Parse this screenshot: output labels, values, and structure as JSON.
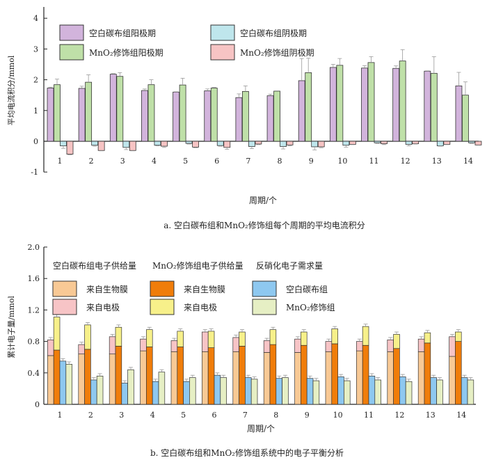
{
  "chart_data": [
    {
      "type": "bar",
      "caption": "a. 空白碳布组和MnO₂修饰组每个周期的平均电流积分",
      "xlabel": "周期/个",
      "ylabel": "平均电流积分/mmol",
      "ylim": [
        -1,
        4.5
      ],
      "yticks": [
        "-1",
        "0",
        "1",
        "2",
        "3",
        "4"
      ],
      "categories": [
        "1",
        "2",
        "3",
        "4",
        "5",
        "6",
        "7",
        "8",
        "9",
        "10",
        "11",
        "12",
        "13",
        "14"
      ],
      "legend_placement": "top",
      "series": [
        {
          "name": "空白碳布组阳极期",
          "color": "#d2b4dc",
          "values": [
            1.73,
            1.72,
            2.18,
            1.65,
            1.6,
            1.64,
            1.42,
            1.48,
            1.97,
            2.4,
            2.38,
            2.37,
            2.28,
            1.8
          ],
          "err": [
            0.03,
            0.07,
            0.02,
            0.05,
            0.01,
            0.06,
            0.12,
            0.05,
            0.72,
            0.1,
            0.08,
            0.08,
            0.01,
            0.44
          ]
        },
        {
          "name": "MnO₂修饰组阳极期",
          "color": "#bfe0a8",
          "values": [
            1.84,
            1.92,
            2.11,
            1.84,
            1.83,
            1.73,
            1.62,
            1.63,
            2.23,
            2.47,
            2.56,
            2.61,
            2.21,
            1.5
          ],
          "err": [
            0.18,
            0.24,
            0.12,
            0.16,
            0.22,
            0.02,
            0.18,
            0.01,
            0.47,
            0.22,
            0.19,
            0.37,
            0.54,
            0.43
          ]
        },
        {
          "name": "空白碳布组阴极期",
          "color": "#bfe6ec",
          "values": [
            -0.15,
            -0.13,
            -0.2,
            -0.13,
            -0.07,
            -0.14,
            -0.17,
            -0.17,
            -0.18,
            -0.13,
            -0.05,
            -0.1,
            -0.15,
            -0.05
          ],
          "err": [
            0.08,
            0.03,
            0.07,
            0.02,
            0.02,
            0.02,
            0.07,
            0.08,
            0.1,
            0.06,
            0.02,
            0.05,
            0.01,
            0.02
          ]
        },
        {
          "name": "MnO₂修饰组阴极期",
          "color": "#f7c4c4",
          "values": [
            -0.42,
            -0.3,
            -0.3,
            -0.16,
            -0.19,
            -0.2,
            -0.09,
            -0.12,
            -0.18,
            -0.1,
            -0.08,
            -0.08,
            -0.1,
            -0.12
          ],
          "err": [
            0.02,
            0.01,
            0.01,
            0.04,
            0.02,
            0.06,
            0.02,
            0.03,
            0.03,
            0.01,
            0.03,
            0.01,
            0.01,
            0.01
          ]
        }
      ]
    },
    {
      "type": "bar",
      "stacked": true,
      "caption": "b. 空白碳布组和MnO₂修饰组系统中的电子平衡分析",
      "xlabel": "周期/个",
      "ylabel": "累计电子量/mmol",
      "ylim": [
        0,
        2.0
      ],
      "yticks": [
        "0",
        "0.4",
        "0.8",
        "1.2",
        "1.6",
        "2.0"
      ],
      "categories": [
        "1",
        "2",
        "3",
        "4",
        "5",
        "6",
        "7",
        "8",
        "9",
        "10",
        "11",
        "12",
        "13",
        "14"
      ],
      "legend_groups": [
        "空白碳布组电子供给量",
        "MnO₂修饰组电子供给量",
        "反硝化电子需求量"
      ],
      "legend_placement": "top",
      "series": [
        {
          "name": "来自生物膜",
          "group": "空白碳布组电子供给量",
          "stack": "blank",
          "color": "#f8c995",
          "values": [
            0.62,
            0.64,
            0.64,
            0.68,
            0.67,
            0.67,
            0.67,
            0.66,
            0.66,
            0.67,
            0.68,
            0.67,
            0.67,
            0.61
          ]
        },
        {
          "name": "来自电极",
          "group": "空白碳布组电子供给量",
          "stack": "blank",
          "color": "#f7c4c6",
          "values": [
            0.2,
            0.12,
            0.22,
            0.15,
            0.14,
            0.25,
            0.18,
            0.15,
            0.17,
            0.13,
            0.12,
            0.15,
            0.16,
            0.25
          ]
        },
        {
          "name": "来自生物膜",
          "group": "MnO₂修饰组电子供给量",
          "stack": "mno2",
          "color": "#f07d0a",
          "values": [
            0.69,
            0.7,
            0.74,
            0.73,
            0.73,
            0.72,
            0.74,
            0.76,
            0.75,
            0.77,
            0.75,
            0.71,
            0.78,
            0.8
          ]
        },
        {
          "name": "来自电极",
          "group": "MnO₂修饰组电子供给量",
          "stack": "mno2",
          "color": "#f7f08a",
          "values": [
            0.42,
            0.31,
            0.24,
            0.22,
            0.2,
            0.21,
            0.18,
            0.19,
            0.17,
            0.19,
            0.24,
            0.18,
            0.13,
            0.12
          ]
        },
        {
          "name": "空白碳布组",
          "group": "反硝化电子需求量",
          "stack": "dblank",
          "color": "#8ec8f0",
          "values": [
            0.55,
            0.31,
            0.27,
            0.29,
            0.29,
            0.37,
            0.34,
            0.33,
            0.33,
            0.35,
            0.36,
            0.35,
            0.34,
            0.34
          ]
        },
        {
          "name": "MnO₂修饰组",
          "group": "反硝化电子需求量",
          "stack": "dmno2",
          "color": "#e6efc4",
          "values": [
            0.51,
            0.36,
            0.44,
            0.41,
            0.34,
            0.34,
            0.32,
            0.34,
            0.3,
            0.3,
            0.31,
            0.29,
            0.31,
            0.31
          ]
        }
      ]
    }
  ]
}
